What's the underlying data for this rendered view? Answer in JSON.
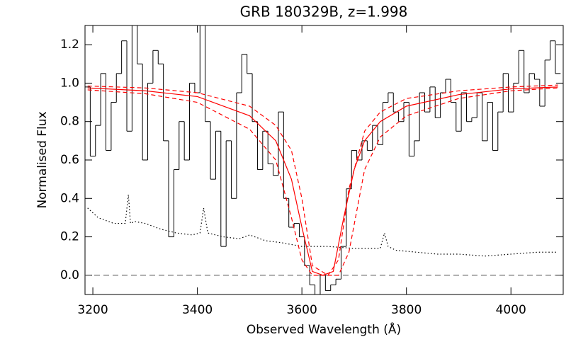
{
  "chart_data": {
    "type": "line",
    "title": "GRB 180329B, z=1.998",
    "xlabel": "Observed Wavelength (Å)",
    "ylabel": "Normalised Flux",
    "xlim": [
      3185,
      4100
    ],
    "ylim": [
      -0.1,
      1.3
    ],
    "xticks": [
      3200,
      3400,
      3600,
      3800,
      4000
    ],
    "yticks": [
      {
        "value": 0,
        "label": "0.0"
      },
      0.2,
      0.4,
      0.6,
      0.8,
      {
        "value": 1,
        "label": "1.0"
      },
      1.2
    ],
    "hline": 0,
    "series": [
      {
        "color": "#000000",
        "style": "steps",
        "x": [
          3190,
          3200,
          3210,
          3220,
          3230,
          3240,
          3250,
          3260,
          3270,
          3280,
          3290,
          3300,
          3310,
          3320,
          3330,
          3340,
          3350,
          3360,
          3370,
          3380,
          3390,
          3400,
          3410,
          3420,
          3430,
          3440,
          3450,
          3460,
          3470,
          3480,
          3490,
          3500,
          3510,
          3520,
          3530,
          3540,
          3550,
          3560,
          3570,
          3580,
          3590,
          3600,
          3610,
          3620,
          3630,
          3640,
          3650,
          3660,
          3670,
          3680,
          3690,
          3700,
          3710,
          3720,
          3730,
          3740,
          3750,
          3760,
          3770,
          3780,
          3790,
          3800,
          3810,
          3820,
          3830,
          3840,
          3850,
          3860,
          3870,
          3880,
          3890,
          3900,
          3910,
          3920,
          3930,
          3940,
          3950,
          3960,
          3970,
          3980,
          3990,
          4000,
          4010,
          4020,
          4030,
          4040,
          4050,
          4060,
          4070,
          4080,
          4090
        ],
        "values": [
          0.98,
          0.62,
          0.78,
          1.05,
          0.65,
          0.9,
          1.05,
          1.22,
          0.75,
          1.3,
          1.1,
          0.6,
          1.0,
          1.17,
          1.1,
          0.7,
          0.2,
          0.55,
          0.8,
          0.6,
          1.0,
          0.95,
          1.3,
          0.8,
          0.5,
          0.75,
          0.15,
          0.7,
          0.4,
          0.95,
          1.15,
          1.05,
          0.8,
          0.55,
          0.75,
          0.58,
          0.52,
          0.85,
          0.4,
          0.25,
          0.27,
          0.2,
          0.05,
          -0.05,
          -0.1,
          0.0,
          -0.08,
          -0.05,
          -0.02,
          0.15,
          0.45,
          0.65,
          0.6,
          0.7,
          0.65,
          0.78,
          0.68,
          0.9,
          0.95,
          0.85,
          0.8,
          0.9,
          0.62,
          0.7,
          0.95,
          0.85,
          0.98,
          0.82,
          0.95,
          1.02,
          0.9,
          0.75,
          0.95,
          0.8,
          0.82,
          0.95,
          0.7,
          0.9,
          0.65,
          0.85,
          1.05,
          0.85,
          1.0,
          1.17,
          0.95,
          1.05,
          1.02,
          0.88,
          1.12,
          1.22,
          1.05
        ]
      },
      {
        "color": "#000000",
        "style": "dotted",
        "x": [
          3190,
          3210,
          3240,
          3262,
          3268,
          3272,
          3280,
          3300,
          3330,
          3360,
          3390,
          3405,
          3412,
          3420,
          3450,
          3480,
          3500,
          3530,
          3560,
          3600,
          3650,
          3700,
          3750,
          3758,
          3765,
          3780,
          3820,
          3860,
          3900,
          3950,
          4000,
          4050,
          4090
        ],
        "values": [
          0.35,
          0.3,
          0.27,
          0.27,
          0.42,
          0.27,
          0.28,
          0.27,
          0.24,
          0.22,
          0.21,
          0.22,
          0.35,
          0.22,
          0.2,
          0.19,
          0.21,
          0.18,
          0.17,
          0.15,
          0.15,
          0.14,
          0.14,
          0.22,
          0.15,
          0.13,
          0.12,
          0.11,
          0.11,
          0.1,
          0.11,
          0.12,
          0.12
        ]
      },
      {
        "color": "#ff0000",
        "style": "solid",
        "x": [
          3190,
          3300,
          3400,
          3500,
          3550,
          3580,
          3600,
          3620,
          3640,
          3660,
          3680,
          3700,
          3720,
          3750,
          3800,
          3900,
          4000,
          4090
        ],
        "values": [
          0.975,
          0.96,
          0.93,
          0.83,
          0.7,
          0.5,
          0.25,
          0.02,
          0.0,
          0.02,
          0.3,
          0.55,
          0.7,
          0.8,
          0.88,
          0.94,
          0.97,
          0.98
        ]
      },
      {
        "color": "#ff0000",
        "style": "dashed",
        "x": [
          3190,
          3300,
          3400,
          3500,
          3550,
          3580,
          3600,
          3620,
          3650,
          3670,
          3690,
          3720,
          3750,
          3800,
          3900,
          4000,
          4090
        ],
        "values": [
          0.985,
          0.975,
          0.95,
          0.88,
          0.78,
          0.65,
          0.4,
          0.05,
          0.0,
          0.08,
          0.45,
          0.75,
          0.85,
          0.92,
          0.96,
          0.98,
          0.99
        ]
      },
      {
        "color": "#ff0000",
        "style": "dashed",
        "x": [
          3190,
          3300,
          3400,
          3500,
          3550,
          3580,
          3600,
          3620,
          3670,
          3690,
          3720,
          3750,
          3800,
          3900,
          4000,
          4090
        ],
        "values": [
          0.965,
          0.945,
          0.9,
          0.76,
          0.6,
          0.3,
          0.08,
          0.0,
          0.0,
          0.12,
          0.55,
          0.72,
          0.83,
          0.92,
          0.96,
          0.975
        ]
      }
    ]
  }
}
